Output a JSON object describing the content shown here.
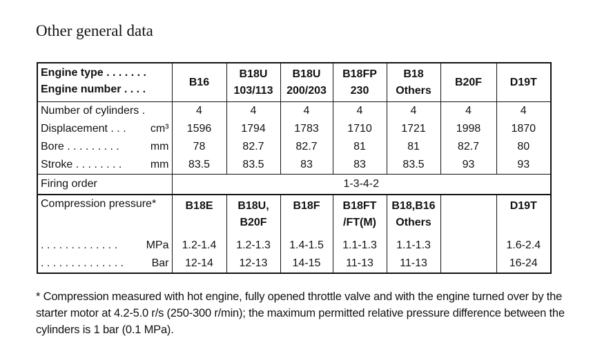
{
  "title": "Other general data",
  "header": {
    "label_lines": [
      "Engine type . . . . . . .",
      "Engine number . . . ."
    ],
    "columns": [
      [
        "B16"
      ],
      [
        "B18U",
        "103/113"
      ],
      [
        "B18U",
        "200/203"
      ],
      [
        "B18FP",
        "230"
      ],
      [
        "B18",
        "Others"
      ],
      [
        "B20F"
      ],
      [
        "D19T"
      ]
    ]
  },
  "rows": [
    {
      "label": "Number of cylinders .",
      "values": [
        4,
        4,
        4,
        4,
        4,
        4,
        4
      ]
    },
    {
      "label": "Displacement . . .",
      "unit": "cm³",
      "values": [
        1596,
        1794,
        1783,
        1710,
        1721,
        1998,
        1870
      ]
    },
    {
      "label": "Bore . . . . . . . . .",
      "unit": "mm",
      "values": [
        78,
        82.7,
        82.7,
        81,
        81,
        82.7,
        80
      ]
    },
    {
      "label": "Stroke . . . . . . . .",
      "unit": "mm",
      "values": [
        83.5,
        83.5,
        83,
        83,
        83.5,
        93,
        93
      ]
    }
  ],
  "firing_order": {
    "label": "Firing order",
    "value": "1-3-4-2"
  },
  "compression": {
    "label": "Compression pressure*",
    "columns": [
      [
        "B18E"
      ],
      [
        "B18U,",
        "B20F"
      ],
      [
        "B18F"
      ],
      [
        "B18FT",
        "/FT(M)"
      ],
      [
        "B18,B16",
        "Others"
      ],
      null,
      [
        "D19T"
      ]
    ],
    "rows": [
      {
        "label": ". . . . . . . . . . . . .",
        "unit": "MPa",
        "values": [
          "1.2-1.4",
          "1.2-1.3",
          "1.4-1.5",
          "1.1-1.3",
          "1.1-1.3",
          null,
          "1.6-2.4"
        ]
      },
      {
        "label": ". . . . . . . . . . . . . .",
        "unit": "Bar",
        "values": [
          "12-14",
          "12-13",
          "14-15",
          "11-13",
          "11-13",
          null,
          "16-24"
        ]
      }
    ]
  },
  "footnote": "* Compression measured with hot engine, fully opened throttle valve and with the engine turned over by the starter motor at 4.2-5.0 r/s (250-300 r/min); the maximum permitted relative pressure difference between the cylinders is 1 bar (0.1 MPa)."
}
